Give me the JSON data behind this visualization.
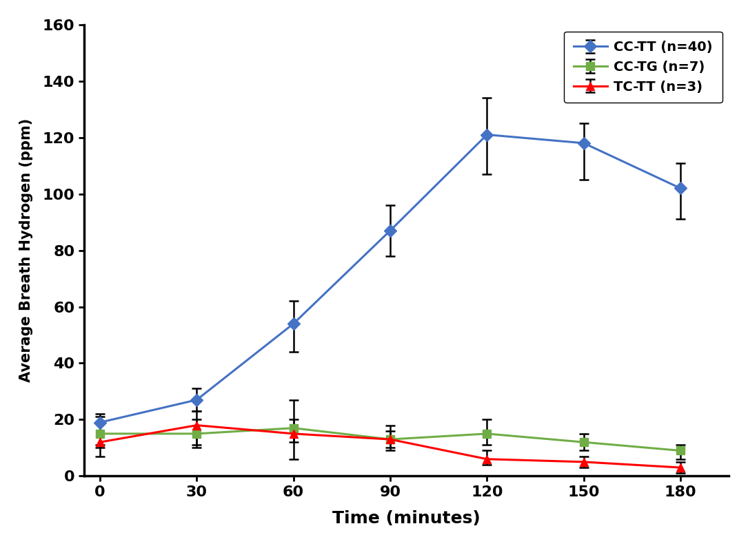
{
  "x": [
    0,
    30,
    60,
    90,
    120,
    150,
    180
  ],
  "series": [
    {
      "label": "CC-TT (n=40)",
      "color": "#4472C4",
      "marker": "D",
      "markersize": 9,
      "y": [
        19,
        27,
        54,
        87,
        121,
        118,
        102
      ],
      "yerr_neg": [
        9,
        4,
        10,
        9,
        14,
        13,
        11
      ],
      "yerr_pos": [
        3,
        4,
        8,
        9,
        13,
        7,
        9
      ]
    },
    {
      "label": "CC-TG (n=7)",
      "color": "#70AD47",
      "marker": "s",
      "markersize": 9,
      "y": [
        15,
        15,
        17,
        13,
        15,
        12,
        9
      ],
      "yerr_neg": [
        4,
        5,
        5,
        3,
        4,
        3,
        3
      ],
      "yerr_pos": [
        4,
        5,
        3,
        3,
        5,
        3,
        2
      ]
    },
    {
      "label": "TC-TT (n=3)",
      "color": "#FF0000",
      "marker": "^",
      "markersize": 9,
      "y": [
        12,
        18,
        15,
        13,
        6,
        5,
        3
      ],
      "yerr_neg": [
        5,
        7,
        9,
        4,
        2,
        2,
        2
      ],
      "yerr_pos": [
        9,
        5,
        12,
        5,
        3,
        2,
        2
      ]
    }
  ],
  "xlabel": "Time (minutes)",
  "ylabel": "Average Breath Hydrogen (ppm)",
  "xlim": [
    -5,
    195
  ],
  "ylim": [
    0,
    160
  ],
  "yticks": [
    0,
    20,
    40,
    60,
    80,
    100,
    120,
    140,
    160
  ],
  "xticks": [
    0,
    30,
    60,
    90,
    120,
    150,
    180
  ],
  "legend_loc": "upper right",
  "background_color": "#FFFFFF",
  "ecolor": "black",
  "capsize": 5,
  "elinewidth": 1.8,
  "linewidth": 2.2
}
